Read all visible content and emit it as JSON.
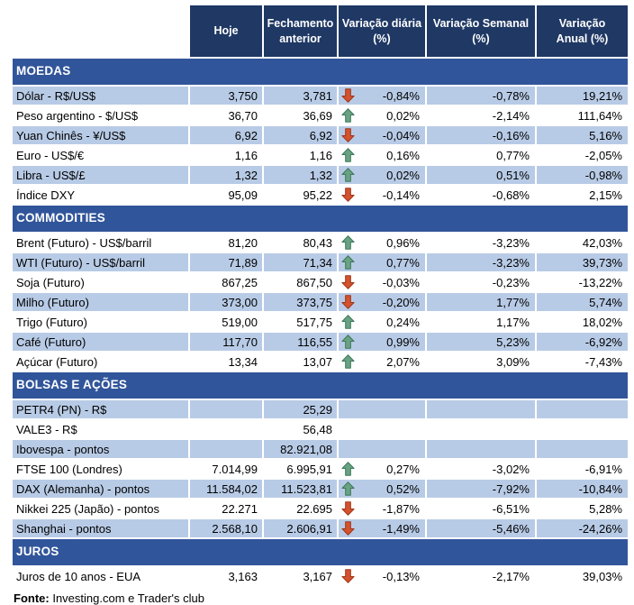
{
  "chart_data": {
    "type": "table",
    "columns": [
      "Hoje",
      "Fechamento\nanterior",
      "Variação diária\n(%)",
      "Variação Semanal\n(%)",
      "Variação\nAnual (%)"
    ],
    "sections": [
      {
        "title": "MOEDAS",
        "rows": [
          {
            "label": "Dólar - R$/US$",
            "hoje": "3,750",
            "fechamento": "3,781",
            "arrow": "down",
            "diaria": "-0,84%",
            "semanal": "-0,78%",
            "anual": "19,21%"
          },
          {
            "label": "Peso argentino - $/US$",
            "hoje": "36,70",
            "fechamento": "36,69",
            "arrow": "up",
            "diaria": "0,02%",
            "semanal": "-2,14%",
            "anual": "111,64%"
          },
          {
            "label": "Yuan Chinês - ¥/US$",
            "hoje": "6,92",
            "fechamento": "6,92",
            "arrow": "down",
            "diaria": "-0,04%",
            "semanal": "-0,16%",
            "anual": "5,16%"
          },
          {
            "label": "Euro - US$/€",
            "hoje": "1,16",
            "fechamento": "1,16",
            "arrow": "up",
            "diaria": "0,16%",
            "semanal": "0,77%",
            "anual": "-2,05%"
          },
          {
            "label": "Libra - US$/£",
            "hoje": "1,32",
            "fechamento": "1,32",
            "arrow": "up",
            "diaria": "0,02%",
            "semanal": "0,51%",
            "anual": "-0,98%"
          },
          {
            "label": "Índice DXY",
            "hoje": "95,09",
            "fechamento": "95,22",
            "arrow": "down",
            "diaria": "-0,14%",
            "semanal": "-0,68%",
            "anual": "2,15%"
          }
        ]
      },
      {
        "title": "COMMODITIES",
        "rows": [
          {
            "label": "Brent (Futuro) - US$/barril",
            "hoje": "81,20",
            "fechamento": "80,43",
            "arrow": "up",
            "diaria": "0,96%",
            "semanal": "-3,23%",
            "anual": "42,03%"
          },
          {
            "label": "WTI (Futuro) - US$/barril",
            "hoje": "71,89",
            "fechamento": "71,34",
            "arrow": "up",
            "diaria": "0,77%",
            "semanal": "-3,23%",
            "anual": "39,73%"
          },
          {
            "label": "Soja (Futuro)",
            "hoje": "867,25",
            "fechamento": "867,50",
            "arrow": "down",
            "diaria": "-0,03%",
            "semanal": "-0,23%",
            "anual": "-13,22%"
          },
          {
            "label": "Milho (Futuro)",
            "hoje": "373,00",
            "fechamento": "373,75",
            "arrow": "down",
            "diaria": "-0,20%",
            "semanal": "1,77%",
            "anual": "5,74%"
          },
          {
            "label": "Trigo (Futuro)",
            "hoje": "519,00",
            "fechamento": "517,75",
            "arrow": "up",
            "diaria": "0,24%",
            "semanal": "1,17%",
            "anual": "18,02%"
          },
          {
            "label": "Café (Futuro)",
            "hoje": "117,70",
            "fechamento": "116,55",
            "arrow": "up",
            "diaria": "0,99%",
            "semanal": "5,23%",
            "anual": "-6,92%"
          },
          {
            "label": "Açúcar (Futuro)",
            "hoje": "13,34",
            "fechamento": "13,07",
            "arrow": "up",
            "diaria": "2,07%",
            "semanal": "3,09%",
            "anual": "-7,43%"
          }
        ]
      },
      {
        "title": "BOLSAS E AÇÕES",
        "rows": [
          {
            "label": "PETR4 (PN) - R$",
            "hoje": "",
            "fechamento": "25,29",
            "arrow": null,
            "diaria": "",
            "semanal": "",
            "anual": ""
          },
          {
            "label": "VALE3 - R$",
            "hoje": "",
            "fechamento": "56,48",
            "arrow": null,
            "diaria": "",
            "semanal": "",
            "anual": ""
          },
          {
            "label": "Ibovespa - pontos",
            "hoje": "",
            "fechamento": "82.921,08",
            "arrow": null,
            "diaria": "",
            "semanal": "",
            "anual": ""
          },
          {
            "label": "FTSE 100 (Londres)",
            "hoje": "7.014,99",
            "fechamento": "6.995,91",
            "arrow": "up",
            "diaria": "0,27%",
            "semanal": "-3,02%",
            "anual": "-6,91%"
          },
          {
            "label": "DAX (Alemanha) - pontos",
            "hoje": "11.584,02",
            "fechamento": "11.523,81",
            "arrow": "up",
            "diaria": "0,52%",
            "semanal": "-7,92%",
            "anual": "-10,84%"
          },
          {
            "label": "Nikkei 225 (Japão) - pontos",
            "hoje": "22.271",
            "fechamento": "22.695",
            "arrow": "down",
            "diaria": "-1,87%",
            "semanal": "-6,51%",
            "anual": "5,28%"
          },
          {
            "label": "Shanghai - pontos",
            "hoje": "2.568,10",
            "fechamento": "2.606,91",
            "arrow": "down",
            "diaria": "-1,49%",
            "semanal": "-5,46%",
            "anual": "-24,26%"
          }
        ]
      },
      {
        "title": "JUROS",
        "rows": [
          {
            "label": "Juros de 10 anos - EUA",
            "hoje": "3,163",
            "fechamento": "3,167",
            "arrow": "down",
            "diaria": "-0,13%",
            "semanal": "-2,17%",
            "anual": "39,03%"
          }
        ]
      }
    ]
  },
  "footer": {
    "source_label": "Fonte:",
    "source_text": " Investing.com e Trader's club"
  },
  "icons": {
    "up": "up-arrow-icon",
    "down": "down-arrow-icon"
  },
  "colors": {
    "header_bg": "#1F3864",
    "section_bg": "#31559A",
    "row_shaded": "#B8CBE6",
    "arrow_up_fill": "#68A283",
    "arrow_up_border": "#3D7858",
    "arrow_down_fill": "#D4522E",
    "arrow_down_border": "#A03518"
  }
}
